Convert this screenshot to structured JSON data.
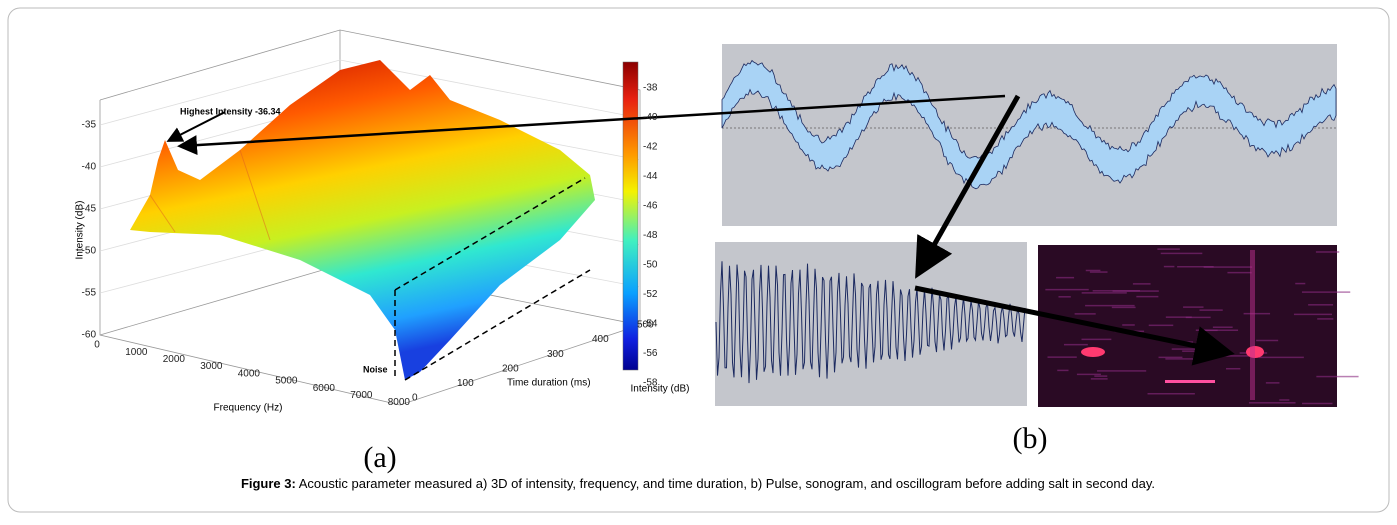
{
  "figure": {
    "panel_a": {
      "label": "(a)",
      "annotation": "Highest Intensity -36.34",
      "noise_label": "Noise",
      "z_axis_label": "Intensity (dB)",
      "z_ticks": [
        -35,
        -40,
        -45,
        -50,
        -55,
        -60
      ],
      "x_axis_label": "Frequency (Hz)",
      "x_ticks": [
        0,
        1000,
        2000,
        3000,
        4000,
        5000,
        6000,
        7000,
        8000
      ],
      "y_axis_label": "Time duration (ms)",
      "y_ticks": [
        0,
        100,
        200,
        300,
        400,
        500
      ],
      "colorbar_label": "Intensity (dB)",
      "colorbar_ticks": [
        -38,
        -40,
        -42,
        -44,
        -46,
        -48,
        -50,
        -52,
        -54,
        -56,
        -58
      ]
    },
    "panel_b": {
      "label": "(b)"
    },
    "caption": {
      "bold": "Figure 3:",
      "text": "Acoustic parameter measured a) 3D of intensity, frequency, and time duration, b) Pulse, sonogram, and oscillogram before adding salt in second day."
    }
  }
}
